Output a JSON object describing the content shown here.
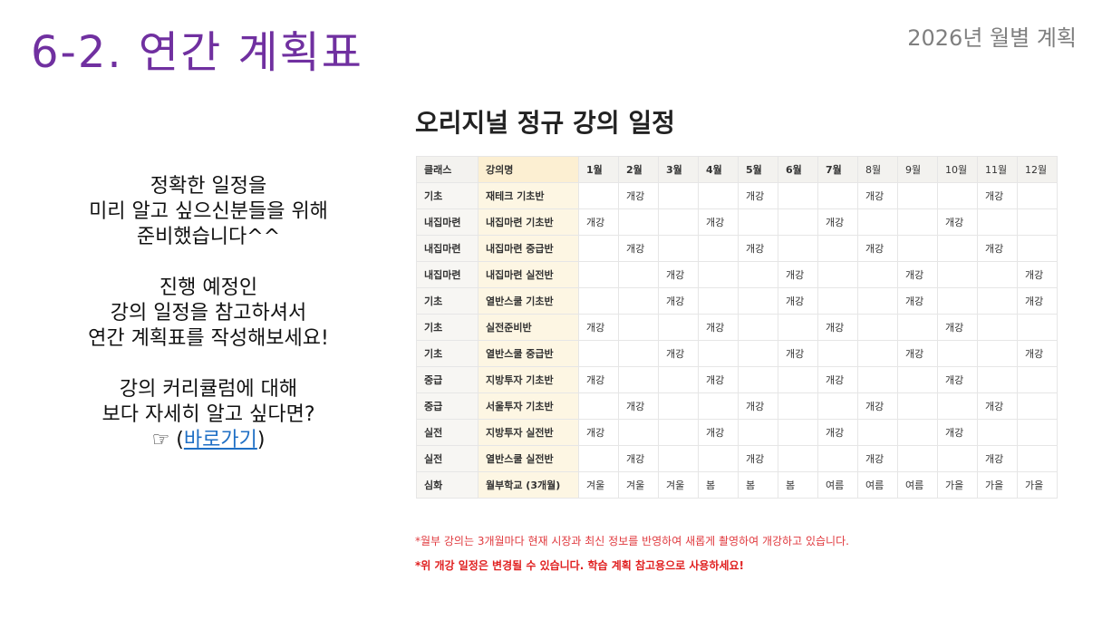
{
  "header": {
    "title": "6-2. 연간 계획표",
    "subtitle": "2026년 월별 계획"
  },
  "left_text": {
    "p1": [
      "정확한 일정을",
      "미리 알고 싶으신분들을 위해",
      "준비했습니다^^"
    ],
    "p2": [
      "진행 예정인",
      "강의 일정을 참고하셔서",
      "연간 계획표를 작성해보세요!"
    ],
    "p3": [
      "강의 커리큘럼에 대해",
      "보다 자세히 알고 싶다면?"
    ],
    "pointer": "☞ (",
    "link": "바로가기",
    "close": ")"
  },
  "table": {
    "title": "오리지널 정규 강의 일정",
    "headers": [
      "클래스",
      "강의명",
      "1월",
      "2월",
      "3월",
      "4월",
      "5월",
      "6월",
      "7월",
      "8월",
      "9월",
      "10월",
      "11월",
      "12월"
    ],
    "rows": [
      {
        "class": "기초",
        "name": "재테크 기초반",
        "months": [
          "",
          "개강",
          "",
          "",
          "개강",
          "",
          "",
          "개강",
          "",
          "",
          "개강",
          ""
        ]
      },
      {
        "class": "내집마련",
        "name": "내집마련 기초반",
        "months": [
          "개강",
          "",
          "",
          "개강",
          "",
          "",
          "개강",
          "",
          "",
          "개강",
          "",
          ""
        ]
      },
      {
        "class": "내집마련",
        "name": "내집마련 중급반",
        "months": [
          "",
          "개강",
          "",
          "",
          "개강",
          "",
          "",
          "개강",
          "",
          "",
          "개강",
          ""
        ]
      },
      {
        "class": "내집마련",
        "name": "내집마련 실전반",
        "months": [
          "",
          "",
          "개강",
          "",
          "",
          "개강",
          "",
          "",
          "개강",
          "",
          "",
          "개강"
        ]
      },
      {
        "class": "기초",
        "name": "열반스쿨 기초반",
        "months": [
          "",
          "",
          "개강",
          "",
          "",
          "개강",
          "",
          "",
          "개강",
          "",
          "",
          "개강"
        ]
      },
      {
        "class": "기초",
        "name": "실전준비반",
        "months": [
          "개강",
          "",
          "",
          "개강",
          "",
          "",
          "개강",
          "",
          "",
          "개강",
          "",
          ""
        ]
      },
      {
        "class": "기초",
        "name": "열반스쿨 중급반",
        "months": [
          "",
          "",
          "개강",
          "",
          "",
          "개강",
          "",
          "",
          "개강",
          "",
          "",
          "개강"
        ]
      },
      {
        "class": "중급",
        "name": "지방투자 기초반",
        "months": [
          "개강",
          "",
          "",
          "개강",
          "",
          "",
          "개강",
          "",
          "",
          "개강",
          "",
          ""
        ]
      },
      {
        "class": "중급",
        "name": "서울투자 기초반",
        "months": [
          "",
          "개강",
          "",
          "",
          "개강",
          "",
          "",
          "개강",
          "",
          "",
          "개강",
          ""
        ]
      },
      {
        "class": "실전",
        "name": "지방투자 실전반",
        "months": [
          "개강",
          "",
          "",
          "개강",
          "",
          "",
          "개강",
          "",
          "",
          "개강",
          "",
          ""
        ]
      },
      {
        "class": "실전",
        "name": "열반스쿨 실전반",
        "months": [
          "",
          "개강",
          "",
          "",
          "개강",
          "",
          "",
          "개강",
          "",
          "",
          "개강",
          ""
        ]
      },
      {
        "class": "심화",
        "name": "월부학교 (3개월)",
        "months": [
          "겨울",
          "겨울",
          "겨울",
          "봄",
          "봄",
          "봄",
          "여름",
          "여름",
          "여름",
          "가을",
          "가을",
          "가을"
        ]
      }
    ]
  },
  "notes": {
    "note1": "*월부 강의는 3개월마다 현재 시장과 최신 정보를 반영하여 새롭게 촬영하여 개강하고 있습니다.",
    "note2": "*위 개강 일정은 변경될 수 있습니다. 학습 계획 참고용으로 사용하세요!"
  },
  "colors": {
    "title": "#7030a0",
    "link": "#1f6fc5",
    "note": "#e0393e",
    "name_column_bg": "#fdf6e3"
  }
}
